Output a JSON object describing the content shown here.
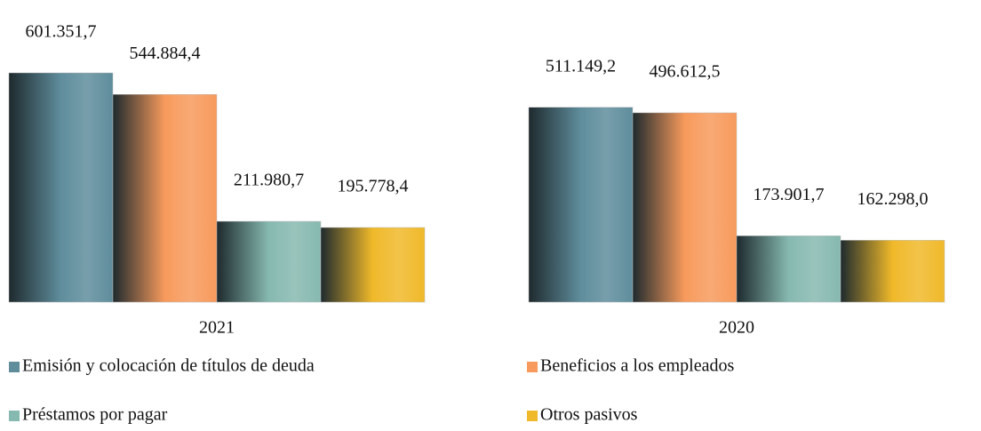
{
  "chart_data": {
    "type": "bar",
    "categories": [
      "2021",
      "2020"
    ],
    "series": [
      {
        "name": "Emisión y colocación de títulos de deuda",
        "color": "#5f8d9c",
        "values": [
          601351.7,
          511149.2
        ],
        "value_labels": [
          "601.351,7",
          "511.149,2"
        ]
      },
      {
        "name": "Beneficios a los empleados",
        "color": "#f79a5c",
        "values": [
          544884.4,
          496612.5
        ],
        "value_labels": [
          "544.884,4",
          "496.612,5"
        ]
      },
      {
        "name": "Préstamos por pagar",
        "color": "#86b9b0",
        "values": [
          211980.7,
          173901.7
        ],
        "value_labels": [
          "211.980,7",
          "173.901,7"
        ]
      },
      {
        "name": "Otros pasivos",
        "color": "#f0b92a",
        "values": [
          195778.4,
          162298.0
        ],
        "value_labels": [
          "195.778,4",
          "162.298,0"
        ]
      }
    ]
  }
}
